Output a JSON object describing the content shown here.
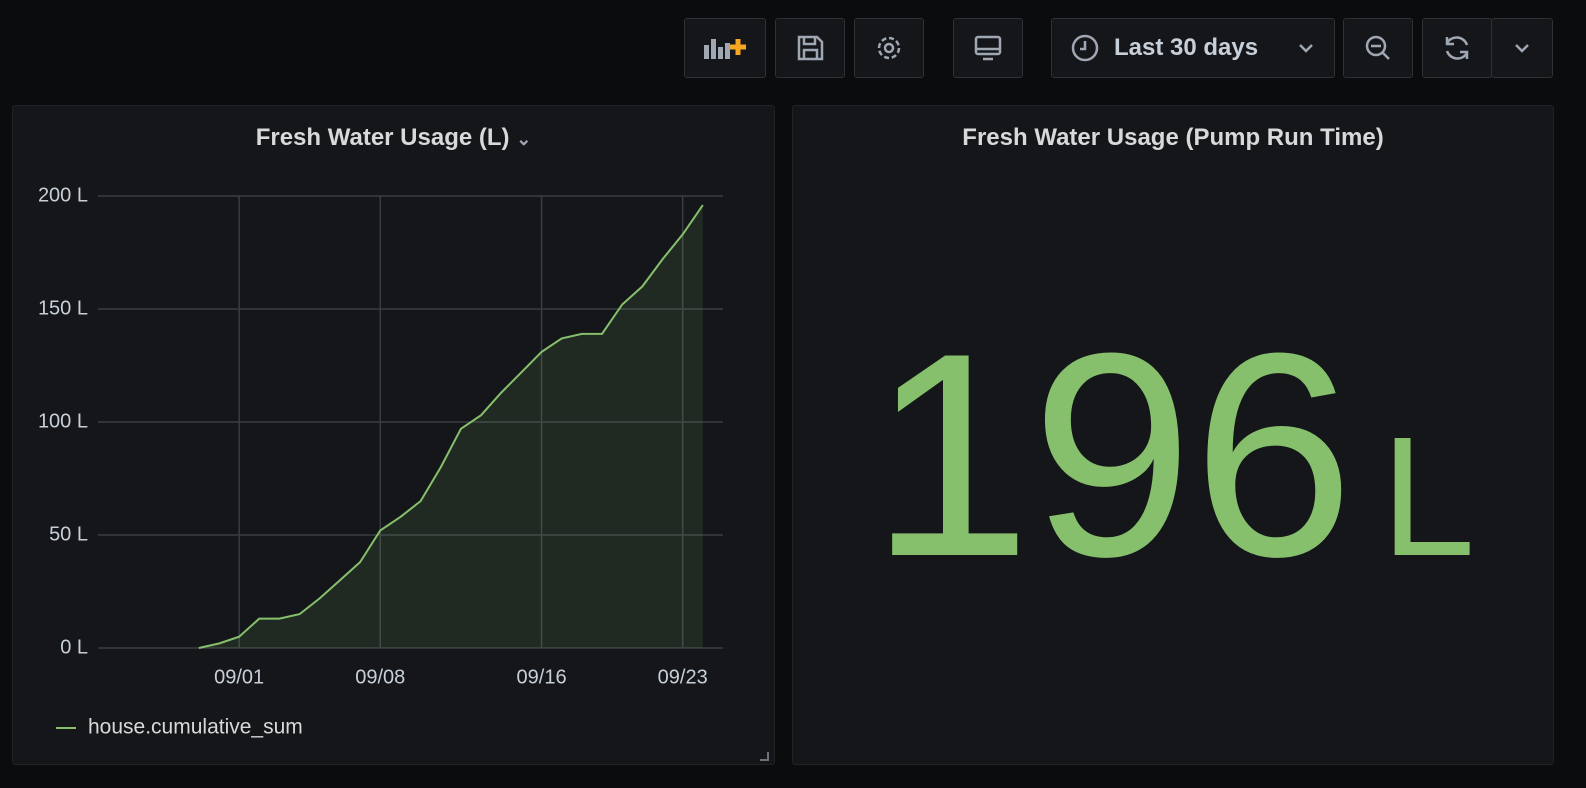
{
  "toolbar": {
    "time_range": "Last 30 days"
  },
  "chart_data": {
    "type": "line",
    "title": "Fresh Water Usage (L)",
    "x": [
      "08/30",
      "08/31",
      "09/01",
      "09/02",
      "09/03",
      "09/04",
      "09/05",
      "09/06",
      "09/07",
      "09/08",
      "09/09",
      "09/10",
      "09/11",
      "09/12",
      "09/13",
      "09/14",
      "09/15",
      "09/16",
      "09/17",
      "09/18",
      "09/19",
      "09/20",
      "09/21",
      "09/22",
      "09/23",
      "09/24"
    ],
    "series": [
      {
        "name": "house.cumulative_sum",
        "color": "#86c06c",
        "values": [
          0,
          2,
          5,
          13,
          13,
          15,
          22,
          30,
          38,
          52,
          58,
          65,
          80,
          97,
          103,
          113,
          122,
          131,
          137,
          139,
          139,
          152,
          160,
          172,
          183,
          196
        ]
      }
    ],
    "xlim": [
      "08/25",
      "09/25"
    ],
    "xticks": [
      "09/01",
      "09/08",
      "09/16",
      "09/23"
    ],
    "ylim": [
      0,
      200
    ],
    "yticks": [
      {
        "value": 0,
        "label": "0 L"
      },
      {
        "value": 50,
        "label": "50 L"
      },
      {
        "value": 100,
        "label": "100 L"
      },
      {
        "value": 150,
        "label": "150 L"
      },
      {
        "value": 200,
        "label": "200 L"
      }
    ],
    "grid": true,
    "legend": "bottom-left"
  },
  "stat_panel": {
    "title": "Fresh Water Usage (Pump Run Time)",
    "value": 196,
    "unit": "L",
    "color": "#86c06c"
  }
}
